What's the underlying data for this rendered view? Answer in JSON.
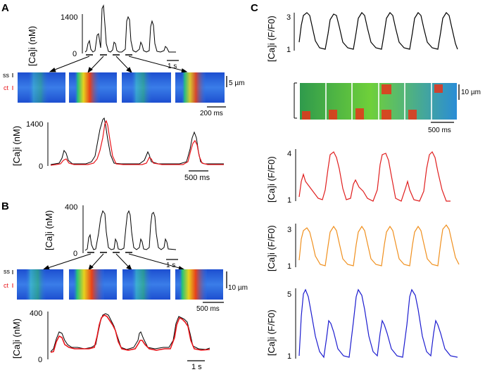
{
  "panels": {
    "A": {
      "letter": "A",
      "top_trace": {
        "ylabel": "[Ca]i (nM)",
        "ytick_hi": "1400",
        "ytick_lo": "0",
        "scale": "1 s",
        "trace_color": "#000000"
      },
      "linescan": {
        "label_ss": "ss",
        "label_ct": "ct",
        "scale_v": "5 µm",
        "scale_h": "200 ms"
      },
      "overlay": {
        "ylabel": "[Ca]i (nM)",
        "ytick_hi": "1400",
        "ytick_lo": "0",
        "scale": "500 ms",
        "trace_colors": [
          "#000000",
          "#e8141a"
        ]
      }
    },
    "B": {
      "letter": "B",
      "top_trace": {
        "ylabel": "[Ca]i (nM)",
        "ytick_hi": "400",
        "ytick_lo": "0",
        "scale": "1 s",
        "trace_color": "#000000"
      },
      "linescan": {
        "label_ss": "ss",
        "label_ct": "ct",
        "scale_v": "10 µm",
        "scale_h": "500 ms"
      },
      "overlay": {
        "ylabel": "[Ca]i (nM)",
        "ytick_hi": "400",
        "ytick_lo": "0",
        "scale": "1 s",
        "trace_colors": [
          "#000000",
          "#e8141a"
        ]
      }
    },
    "C": {
      "letter": "C",
      "traces": [
        {
          "ylabel": "[Ca]i (F/F0)",
          "ytick_hi": "3",
          "ytick_lo": "1",
          "color": "#000000"
        },
        {
          "ylabel": "[Ca]i (F/F0)",
          "ytick_hi": "4",
          "ytick_lo": "1",
          "color": "#e01e1e"
        },
        {
          "ylabel": "[Ca]i (F/F0)",
          "ytick_hi": "3",
          "ytick_lo": "1",
          "color": "#f0901e"
        },
        {
          "ylabel": "[Ca]i (F/F0)",
          "ytick_hi": "5",
          "ytick_lo": "1",
          "color": "#1c1ccf"
        }
      ],
      "linescan": {
        "scale_v": "10 µm",
        "scale_h": "500 ms"
      }
    }
  }
}
